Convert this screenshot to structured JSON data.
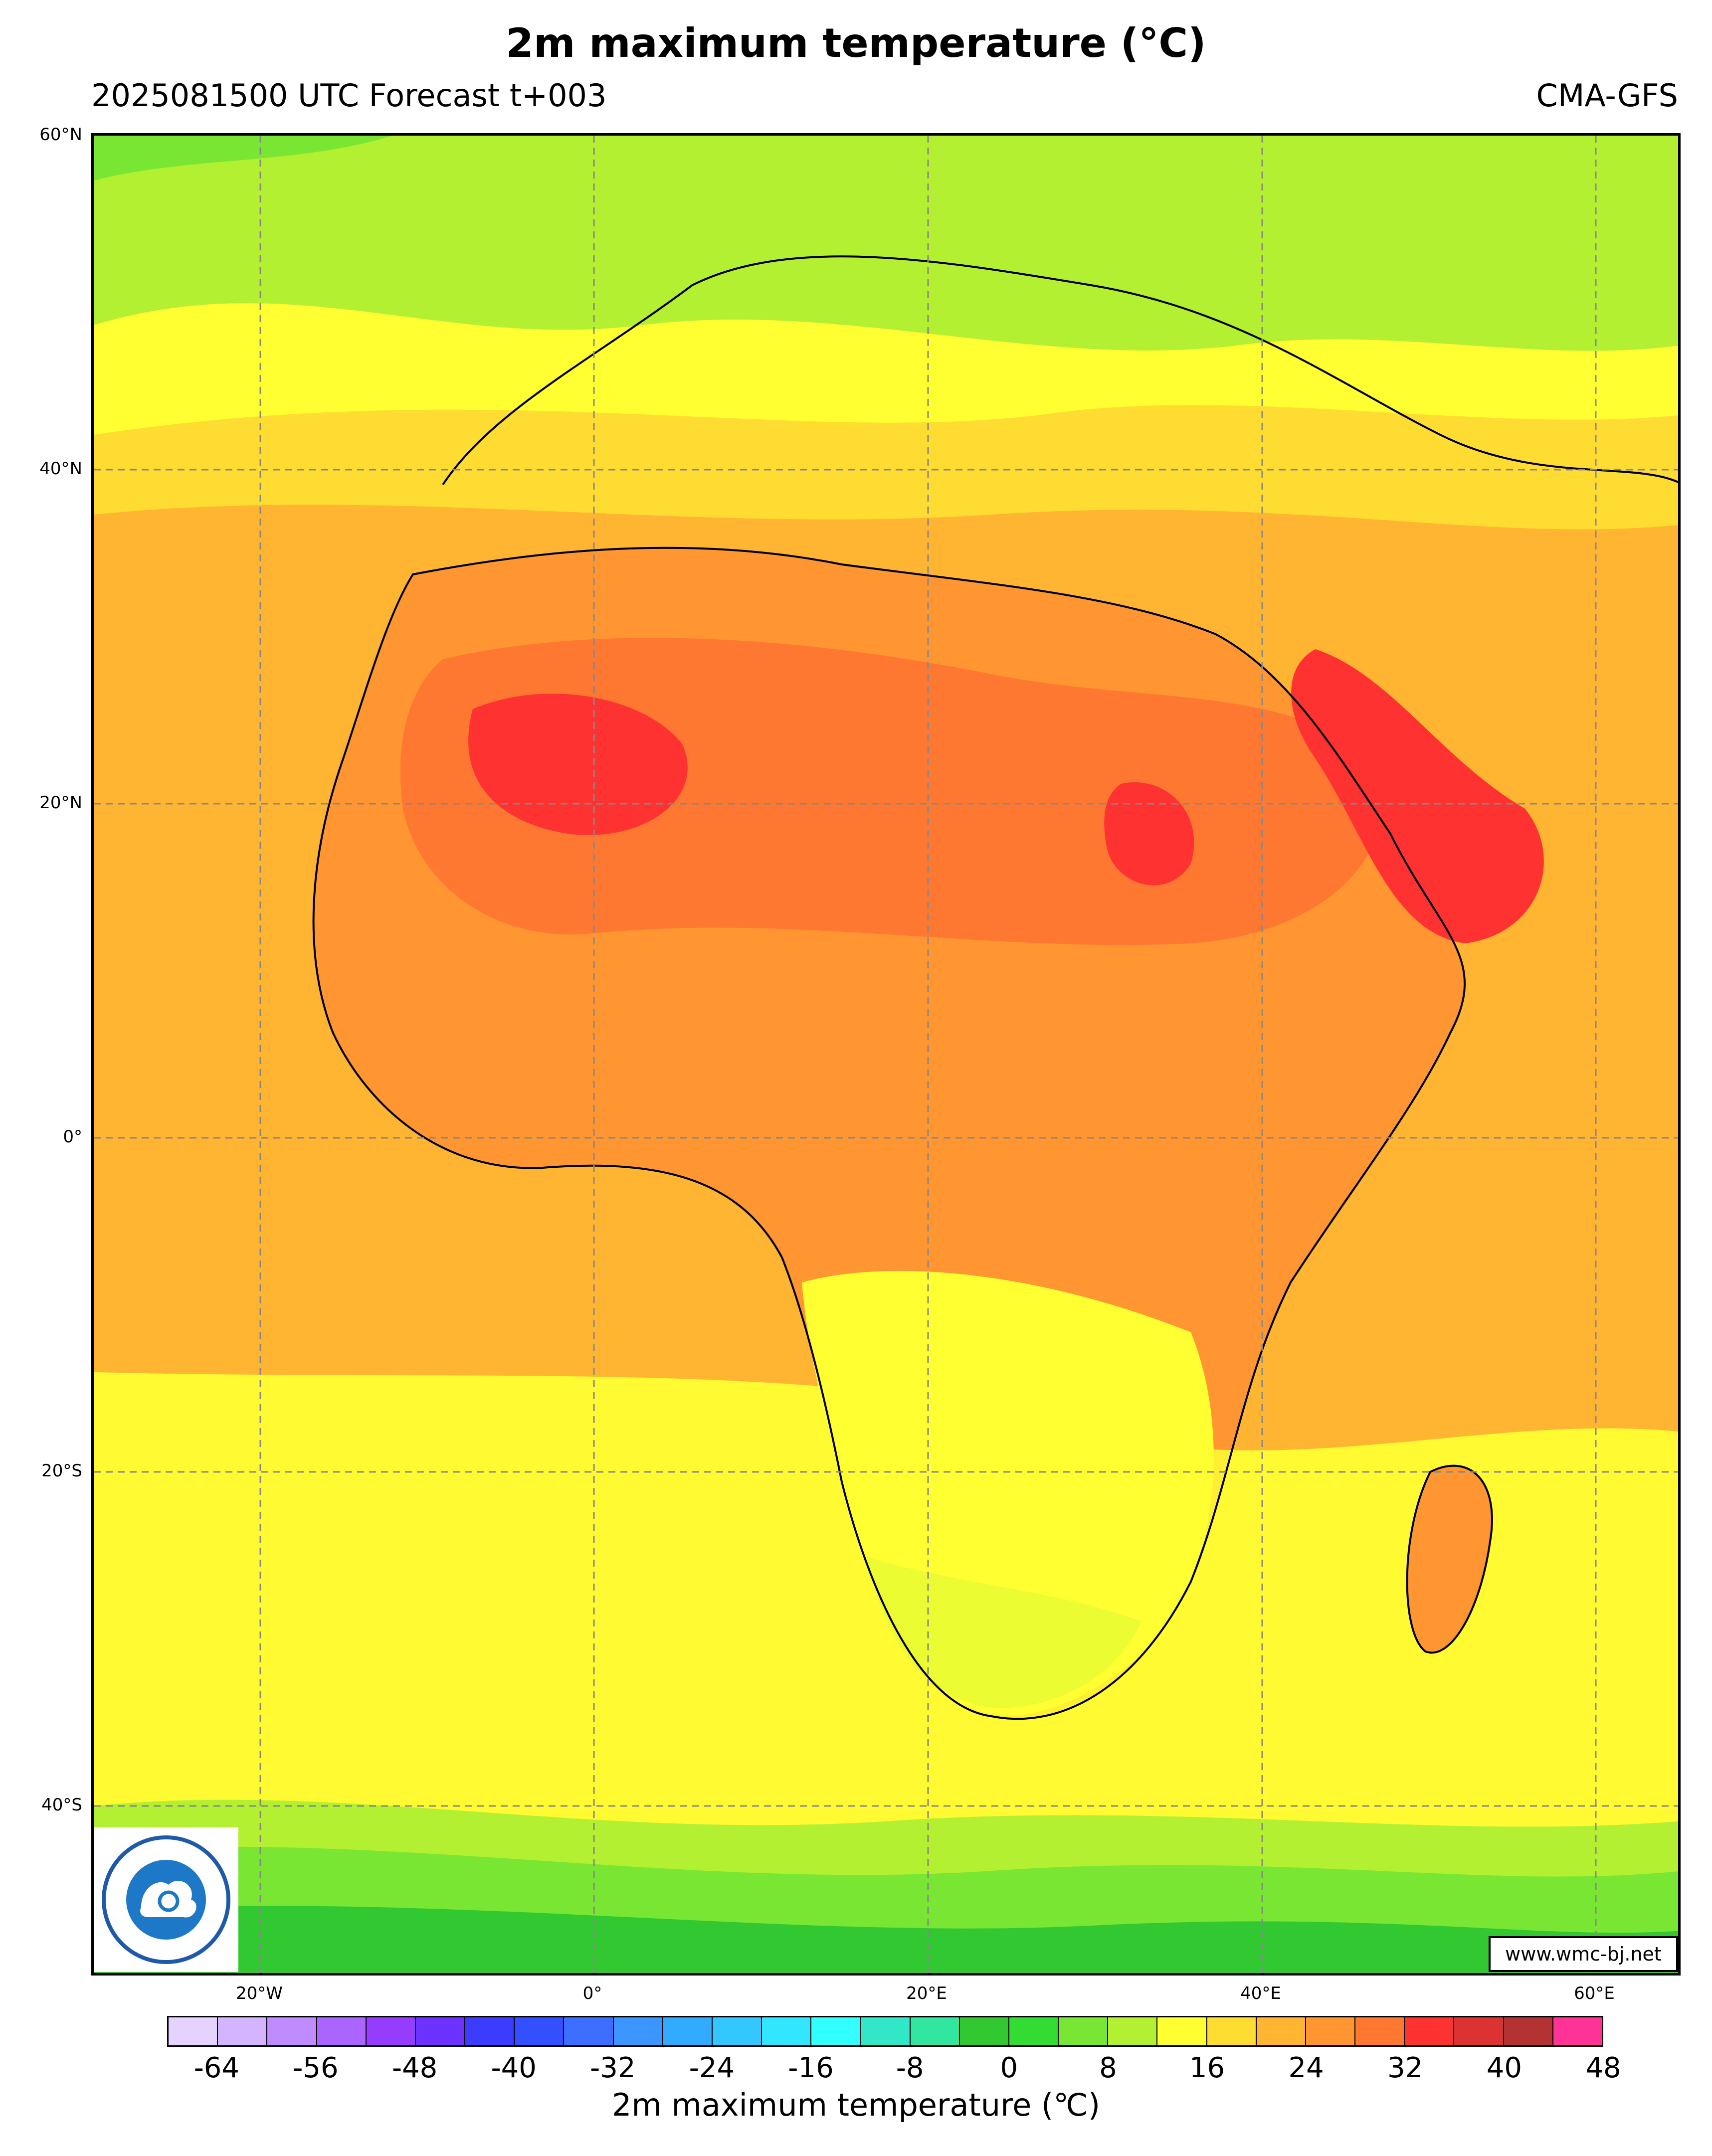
{
  "title": "2m maximum temperature (°C)",
  "subtitle_left": "2025081500 UTC Forecast t+003",
  "subtitle_right": "CMA-GFS",
  "website": "www.wmc-bj.net",
  "lat_labels": [
    "60°N",
    "40°N",
    "20°N",
    "0°",
    "20°S",
    "40°S"
  ],
  "lon_labels": [
    "20°W",
    "0°",
    "20°E",
    "40°E",
    "60°E"
  ],
  "colorbar": {
    "label": "2m maximum temperature (℃)",
    "ticks": [
      "-64",
      "-56",
      "-48",
      "-40",
      "-32",
      "-24",
      "-16",
      "-8",
      "0",
      "8",
      "16",
      "24",
      "32",
      "40",
      "48"
    ],
    "colors": [
      "#e6d2ff",
      "#d2b4ff",
      "#be8cff",
      "#aa64ff",
      "#963cff",
      "#6e32ff",
      "#3c3cff",
      "#3250ff",
      "#3c6eff",
      "#3c96ff",
      "#32aaff",
      "#32c8ff",
      "#32e6ff",
      "#32ffff",
      "#32e6c8",
      "#32e6a0",
      "#32c832",
      "#32dc32",
      "#78e632",
      "#b4f032",
      "#ffff32",
      "#ffdc32",
      "#ffb432",
      "#ff9632",
      "#ff7832",
      "#ff3232",
      "#dc3232",
      "#b43232",
      "#ff3296"
    ]
  },
  "map_colors": {
    "ocean_north": "#b4f032",
    "ocean_temperate": "#ffdc32",
    "ocean_tropical": "#ffb432",
    "land_hot": "#ff7832",
    "land_very_hot": "#ff3232",
    "south_cool": "#78e632",
    "south_cold": "#32c832",
    "southern_africa": "#ffff32",
    "land_border": "#000000"
  }
}
